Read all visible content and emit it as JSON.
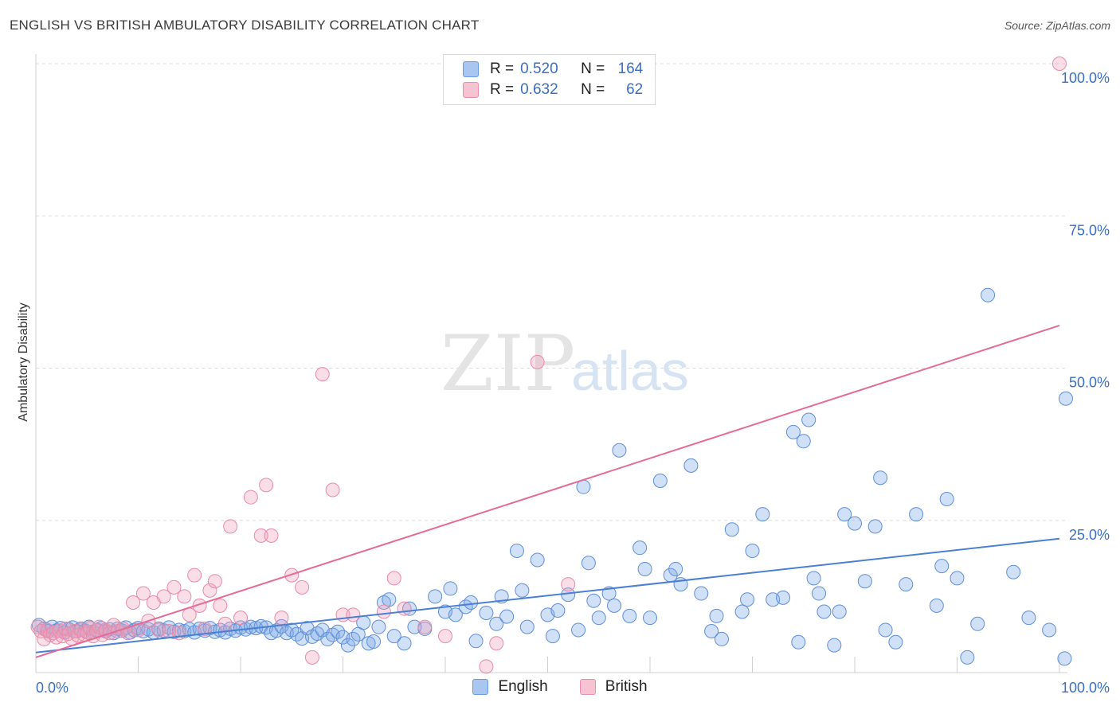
{
  "header": {
    "title": "ENGLISH VS BRITISH AMBULATORY DISABILITY CORRELATION CHART",
    "source": "Source: ZipAtlas.com"
  },
  "watermark": {
    "zip": "ZIP",
    "atlas": "atlas"
  },
  "legend": {
    "rows": [
      {
        "r_label": "R =",
        "r_value": "0.520",
        "n_label": "N =",
        "n_value": "164",
        "color": "#a8c6f0",
        "border": "#6a9be0"
      },
      {
        "r_label": "R =",
        "r_value": "0.632",
        "n_label": "N =",
        "n_value": "62",
        "color": "#f7c3d3",
        "border": "#e890ab"
      }
    ]
  },
  "bottom_legend": {
    "english": "English",
    "british": "British"
  },
  "chart_data": {
    "type": "scatter",
    "title": "ENGLISH VS BRITISH AMBULATORY DISABILITY CORRELATION CHART",
    "xlabel": "",
    "ylabel": "Ambulatory Disability",
    "xlim": [
      0,
      100
    ],
    "ylim": [
      0,
      100
    ],
    "x_tick_labels": [
      "0.0%",
      "100.0%"
    ],
    "y_tick_labels": [
      "25.0%",
      "50.0%",
      "75.0%",
      "100.0%"
    ],
    "y_ticks": [
      25,
      50,
      75,
      100
    ],
    "grid": "horizontal dashed",
    "legend_position": "top-center",
    "colors": {
      "English": "#4a7fd4",
      "British": "#e56a97"
    },
    "series": [
      {
        "name": "English",
        "trend": {
          "x": [
            0,
            100
          ],
          "y": [
            3.3,
            22.0
          ]
        },
        "points": [
          [
            0.3,
            7.8
          ],
          [
            0.8,
            7.2
          ],
          [
            1.2,
            6.8
          ],
          [
            1.6,
            7.5
          ],
          [
            2.0,
            6.9
          ],
          [
            2.4,
            7.3
          ],
          [
            2.8,
            6.6
          ],
          [
            3.2,
            7.1
          ],
          [
            3.6,
            7.4
          ],
          [
            4.0,
            6.8
          ],
          [
            4.4,
            7.2
          ],
          [
            4.8,
            6.9
          ],
          [
            5.2,
            7.5
          ],
          [
            5.6,
            6.7
          ],
          [
            6.0,
            7.0
          ],
          [
            6.4,
            7.3
          ],
          [
            6.8,
            6.8
          ],
          [
            7.2,
            7.1
          ],
          [
            7.6,
            6.5
          ],
          [
            8.0,
            7.2
          ],
          [
            8.4,
            6.9
          ],
          [
            8.8,
            7.4
          ],
          [
            9.2,
            6.6
          ],
          [
            9.6,
            7.0
          ],
          [
            10.0,
            7.3
          ],
          [
            10.5,
            6.8
          ],
          [
            11.0,
            7.1
          ],
          [
            11.5,
            6.6
          ],
          [
            12.0,
            7.2
          ],
          [
            12.5,
            6.9
          ],
          [
            13.0,
            7.4
          ],
          [
            13.5,
            6.7
          ],
          [
            14.0,
            7.0
          ],
          [
            14.5,
            6.8
          ],
          [
            15.0,
            7.1
          ],
          [
            15.5,
            6.6
          ],
          [
            16.0,
            7.2
          ],
          [
            16.5,
            6.9
          ],
          [
            17.0,
            7.3
          ],
          [
            17.5,
            6.7
          ],
          [
            18.0,
            7.0
          ],
          [
            18.5,
            6.6
          ],
          [
            19.0,
            7.2
          ],
          [
            19.5,
            6.9
          ],
          [
            20.0,
            7.4
          ],
          [
            20.5,
            7.1
          ],
          [
            21.0,
            7.5
          ],
          [
            21.5,
            7.3
          ],
          [
            22.0,
            7.6
          ],
          [
            22.5,
            7.4
          ],
          [
            23.0,
            6.5
          ],
          [
            23.5,
            6.9
          ],
          [
            24.0,
            7.6
          ],
          [
            24.5,
            6.5
          ],
          [
            25.0,
            7.0
          ],
          [
            25.5,
            6.3
          ],
          [
            26.0,
            5.6
          ],
          [
            26.5,
            7.3
          ],
          [
            27.0,
            5.9
          ],
          [
            27.5,
            6.4
          ],
          [
            28.0,
            7.0
          ],
          [
            28.5,
            5.5
          ],
          [
            29.0,
            6.2
          ],
          [
            29.5,
            6.7
          ],
          [
            30.0,
            5.8
          ],
          [
            30.5,
            4.5
          ],
          [
            31.0,
            5.5
          ],
          [
            31.5,
            6.3
          ],
          [
            32.0,
            8.2
          ],
          [
            32.5,
            4.8
          ],
          [
            33.0,
            5.1
          ],
          [
            33.5,
            7.5
          ],
          [
            34.0,
            11.5
          ],
          [
            34.5,
            12.0
          ],
          [
            35.0,
            6.0
          ],
          [
            36.0,
            4.8
          ],
          [
            36.5,
            10.5
          ],
          [
            37.0,
            7.5
          ],
          [
            38.0,
            7.2
          ],
          [
            39.0,
            12.5
          ],
          [
            40.0,
            10.0
          ],
          [
            40.5,
            13.8
          ],
          [
            41.0,
            9.5
          ],
          [
            42.0,
            10.8
          ],
          [
            42.5,
            11.5
          ],
          [
            43.0,
            5.2
          ],
          [
            44.0,
            9.8
          ],
          [
            45.0,
            8.0
          ],
          [
            45.5,
            12.5
          ],
          [
            46.0,
            9.2
          ],
          [
            47.0,
            20.0
          ],
          [
            47.5,
            13.5
          ],
          [
            48.0,
            7.5
          ],
          [
            49.0,
            18.5
          ],
          [
            50.0,
            9.5
          ],
          [
            50.5,
            6.0
          ],
          [
            51.0,
            10.2
          ],
          [
            52.0,
            12.8
          ],
          [
            53.0,
            7.0
          ],
          [
            53.5,
            30.5
          ],
          [
            54.0,
            18.0
          ],
          [
            54.5,
            11.8
          ],
          [
            55.0,
            9.0
          ],
          [
            56.0,
            13.0
          ],
          [
            56.5,
            11.0
          ],
          [
            57.0,
            36.5
          ],
          [
            58.0,
            9.3
          ],
          [
            59.0,
            20.5
          ],
          [
            59.5,
            17.0
          ],
          [
            60.0,
            9.0
          ],
          [
            61.0,
            31.5
          ],
          [
            62.0,
            16.0
          ],
          [
            62.5,
            17.0
          ],
          [
            63.0,
            14.5
          ],
          [
            64.0,
            34.0
          ],
          [
            65.0,
            13.0
          ],
          [
            66.0,
            6.8
          ],
          [
            66.5,
            9.3
          ],
          [
            67.0,
            5.5
          ],
          [
            68.0,
            23.5
          ],
          [
            69.0,
            10.0
          ],
          [
            69.5,
            12.0
          ],
          [
            70.0,
            20.0
          ],
          [
            71.0,
            26.0
          ],
          [
            72.0,
            12.0
          ],
          [
            73.0,
            12.3
          ],
          [
            74.0,
            39.5
          ],
          [
            74.5,
            5.0
          ],
          [
            75.0,
            38.0
          ],
          [
            75.5,
            41.5
          ],
          [
            76.0,
            15.5
          ],
          [
            76.5,
            13.0
          ],
          [
            77.0,
            10.0
          ],
          [
            78.0,
            4.5
          ],
          [
            78.5,
            10.0
          ],
          [
            79.0,
            26.0
          ],
          [
            80.0,
            24.5
          ],
          [
            81.0,
            15.0
          ],
          [
            82.0,
            24.0
          ],
          [
            82.5,
            32.0
          ],
          [
            83.0,
            7.0
          ],
          [
            84.0,
            5.0
          ],
          [
            85.0,
            14.5
          ],
          [
            86.0,
            26.0
          ],
          [
            88.0,
            11.0
          ],
          [
            88.5,
            17.5
          ],
          [
            89.0,
            28.5
          ],
          [
            90.0,
            15.5
          ],
          [
            91.0,
            2.5
          ],
          [
            92.0,
            8.0
          ],
          [
            93.0,
            62.0
          ],
          [
            95.5,
            16.5
          ],
          [
            97.0,
            9.0
          ],
          [
            99.0,
            7.0
          ],
          [
            100.5,
            2.3
          ],
          [
            103.0,
            45.0
          ]
        ]
      },
      {
        "name": "British",
        "trend": {
          "x": [
            0,
            100
          ],
          "y": [
            2.5,
            57.0
          ]
        },
        "points": [
          [
            0.2,
            7.5
          ],
          [
            0.5,
            6.8
          ],
          [
            0.8,
            5.5
          ],
          [
            1.1,
            7.0
          ],
          [
            1.4,
            6.2
          ],
          [
            1.7,
            6.5
          ],
          [
            2.0,
            5.8
          ],
          [
            2.3,
            6.9
          ],
          [
            2.6,
            6.0
          ],
          [
            2.9,
            7.2
          ],
          [
            3.2,
            6.4
          ],
          [
            3.5,
            5.6
          ],
          [
            3.8,
            6.8
          ],
          [
            4.1,
            6.1
          ],
          [
            4.4,
            7.0
          ],
          [
            4.7,
            6.3
          ],
          [
            5.0,
            6.6
          ],
          [
            5.3,
            7.3
          ],
          [
            5.6,
            6.0
          ],
          [
            5.9,
            6.9
          ],
          [
            6.2,
            7.5
          ],
          [
            6.5,
            6.2
          ],
          [
            6.8,
            7.0
          ],
          [
            7.2,
            6.5
          ],
          [
            7.6,
            7.8
          ],
          [
            8.0,
            6.8
          ],
          [
            8.5,
            7.2
          ],
          [
            9.0,
            6.5
          ],
          [
            9.5,
            11.5
          ],
          [
            10.0,
            7.0
          ],
          [
            10.5,
            13.0
          ],
          [
            11.0,
            8.5
          ],
          [
            11.5,
            11.5
          ],
          [
            12.0,
            7.0
          ],
          [
            12.5,
            12.5
          ],
          [
            13.0,
            6.8
          ],
          [
            13.5,
            14.0
          ],
          [
            14.0,
            6.5
          ],
          [
            14.5,
            12.5
          ],
          [
            15.0,
            9.5
          ],
          [
            15.5,
            16.0
          ],
          [
            16.0,
            11.0
          ],
          [
            16.5,
            7.2
          ],
          [
            17.0,
            13.5
          ],
          [
            17.5,
            15.0
          ],
          [
            18.0,
            11.0
          ],
          [
            18.5,
            8.0
          ],
          [
            19.0,
            24.0
          ],
          [
            20.0,
            9.0
          ],
          [
            21.0,
            28.8
          ],
          [
            22.0,
            22.5
          ],
          [
            22.5,
            30.8
          ],
          [
            23.0,
            22.5
          ],
          [
            24.0,
            9.0
          ],
          [
            25.0,
            16.0
          ],
          [
            26.0,
            14.0
          ],
          [
            27.0,
            2.5
          ],
          [
            28.0,
            49.0
          ],
          [
            29.0,
            30.0
          ],
          [
            30.0,
            9.5
          ],
          [
            31.0,
            9.5
          ],
          [
            34.0,
            10.0
          ],
          [
            35.0,
            15.5
          ],
          [
            36.0,
            10.5
          ],
          [
            38.0,
            7.5
          ],
          [
            40.0,
            6.0
          ],
          [
            44.0,
            1.0
          ],
          [
            45.0,
            4.8
          ],
          [
            49.0,
            51.0
          ],
          [
            52.0,
            14.5
          ],
          [
            100.0,
            100.0
          ]
        ]
      }
    ]
  }
}
